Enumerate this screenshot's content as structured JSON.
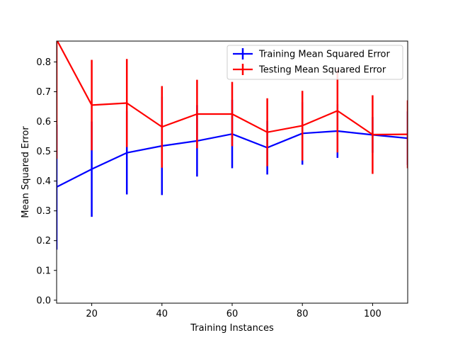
{
  "chart_data": {
    "type": "line",
    "title": "",
    "xlabel": "Training Instances",
    "ylabel": "Mean Squared Error",
    "xlim": [
      10,
      110
    ],
    "ylim": [
      -0.01,
      0.87
    ],
    "x_ticks": [
      20,
      40,
      60,
      80,
      100
    ],
    "y_ticks": [
      0.0,
      0.1,
      0.2,
      0.3,
      0.4,
      0.5,
      0.6,
      0.7,
      0.8
    ],
    "grid": false,
    "legend_position": "top-right",
    "x": [
      10,
      20,
      30,
      40,
      50,
      60,
      70,
      80,
      90,
      100,
      110
    ],
    "series": [
      {
        "name": "Training Mean Squared Error",
        "color": "#0000ff",
        "values": [
          0.38,
          0.44,
          0.495,
          0.518,
          0.535,
          0.558,
          0.512,
          0.56,
          0.568,
          0.555,
          0.544
        ],
        "error": [
          0.21,
          0.16,
          0.14,
          0.165,
          0.12,
          0.115,
          0.09,
          0.105,
          0.09,
          0.06,
          0.09
        ]
      },
      {
        "name": "Testing Mean Squared Error",
        "color": "#ff0000",
        "values": [
          0.875,
          0.655,
          0.662,
          0.582,
          0.625,
          0.625,
          0.564,
          0.586,
          0.636,
          0.556,
          0.557
        ],
        "error": [
          0.4,
          0.152,
          0.148,
          0.137,
          0.115,
          0.108,
          0.114,
          0.117,
          0.14,
          0.132,
          0.114
        ]
      }
    ]
  }
}
